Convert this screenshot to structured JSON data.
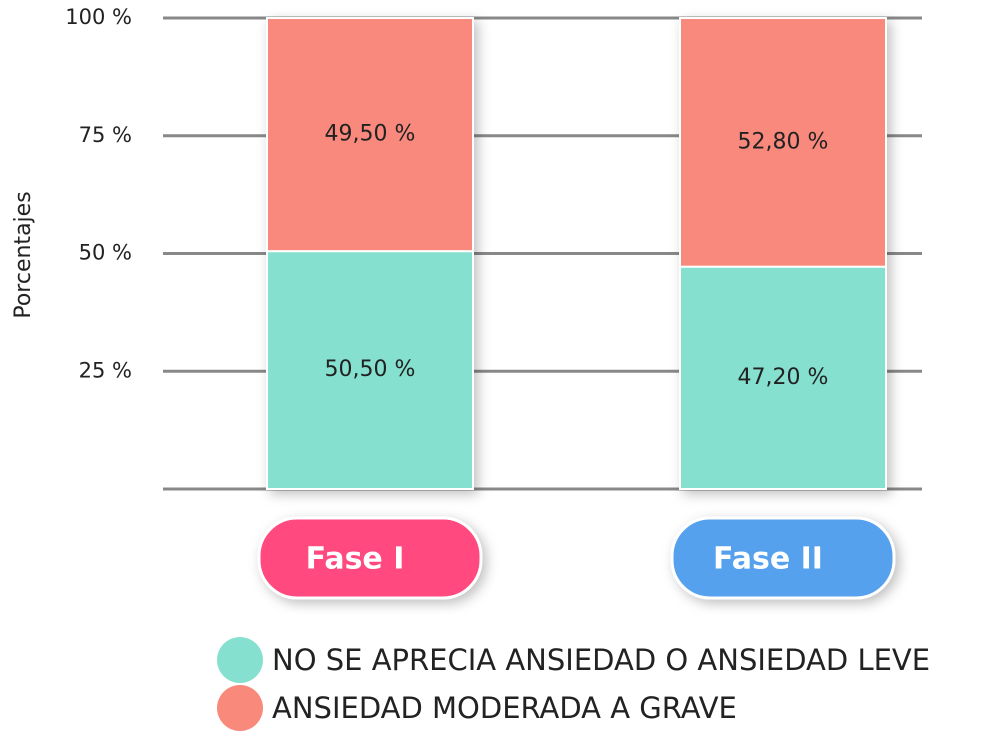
{
  "chart_data": {
    "type": "stacked_bar",
    "y_label": "Porcentajes",
    "categories": [
      "Fase I",
      "Fase II"
    ],
    "category_colors": [
      "#ff4a7f",
      "#55a1ee"
    ],
    "series": [
      {
        "name": "NO SE APRECIA ANSIEDAD O ANSIEDAD LEVE",
        "color": "#86e0cf",
        "values": [
          50.5,
          47.2
        ],
        "value_labels": [
          "50,50 %",
          "47,20 %"
        ]
      },
      {
        "name": "ANSIEDAD MODERADA A GRAVE",
        "color": "#f8897b",
        "values": [
          49.5,
          52.8
        ],
        "value_labels": [
          "49,50 %",
          "52,80 %"
        ]
      }
    ],
    "ylim": [
      0,
      100
    ],
    "yticks": [
      {
        "value": 25,
        "label": "25 %"
      },
      {
        "value": 50,
        "label": "50 %"
      },
      {
        "value": 75,
        "label": "75 %"
      },
      {
        "value": 100,
        "label": "100 %"
      }
    ],
    "grid": true
  }
}
